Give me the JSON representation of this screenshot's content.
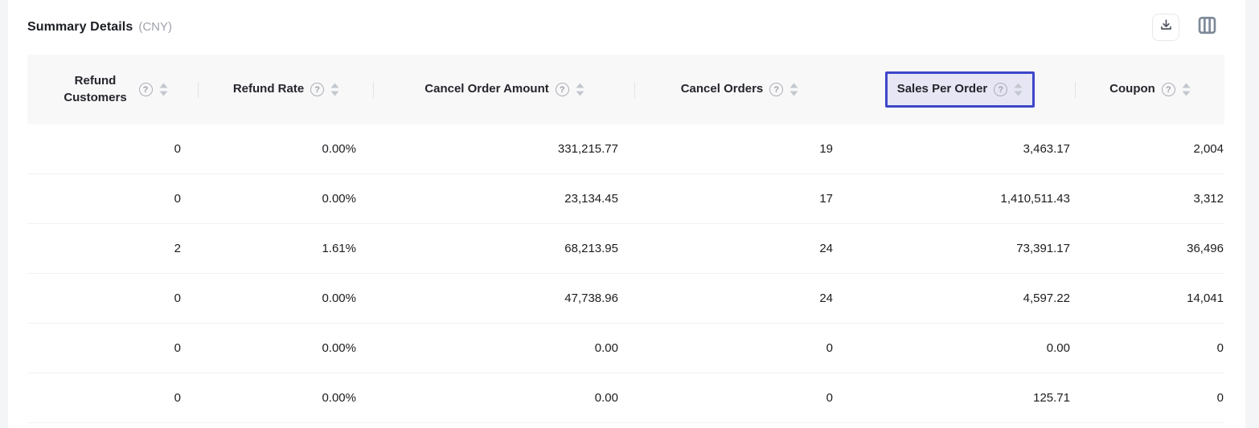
{
  "header": {
    "title": "Summary Details",
    "currency": "(CNY)"
  },
  "toolbar": {
    "buttons": [
      {
        "name": "download",
        "icon": "download-icon"
      },
      {
        "name": "column-settings",
        "icon": "columns-icon"
      }
    ]
  },
  "icons": {
    "help_glyph": "?"
  },
  "colors": {
    "accent": "#3d46c8",
    "highlight_bg": "#e6e6f5",
    "header_band": "#f8f8f9",
    "sort_icon": "#c3c7ce",
    "download_icon": "#4d545e",
    "columns_icon": "#7e8a99"
  },
  "table": {
    "columns": [
      {
        "label": "Refund Customers",
        "has_help": true,
        "has_sort": true,
        "highlighted": false
      },
      {
        "label": "Refund Rate",
        "has_help": true,
        "has_sort": true,
        "highlighted": false
      },
      {
        "label": "Cancel Order Amount",
        "has_help": true,
        "has_sort": true,
        "highlighted": false
      },
      {
        "label": "Cancel Orders",
        "has_help": true,
        "has_sort": true,
        "highlighted": false
      },
      {
        "label": "Sales Per Order",
        "has_help": true,
        "has_sort": true,
        "highlighted": true
      },
      {
        "label": "Coupon",
        "has_help": true,
        "has_sort": true,
        "highlighted": false
      }
    ],
    "rows": [
      [
        "0",
        "0.00%",
        "331,215.77",
        "19",
        "3,463.17",
        "2,004"
      ],
      [
        "0",
        "0.00%",
        "23,134.45",
        "17",
        "1,410,511.43",
        "3,312"
      ],
      [
        "2",
        "1.61%",
        "68,213.95",
        "24",
        "73,391.17",
        "36,496"
      ],
      [
        "0",
        "0.00%",
        "47,738.96",
        "24",
        "4,597.22",
        "14,041"
      ],
      [
        "0",
        "0.00%",
        "0.00",
        "0",
        "0.00",
        "0"
      ],
      [
        "0",
        "0.00%",
        "0.00",
        "0",
        "125.71",
        "0"
      ]
    ]
  }
}
